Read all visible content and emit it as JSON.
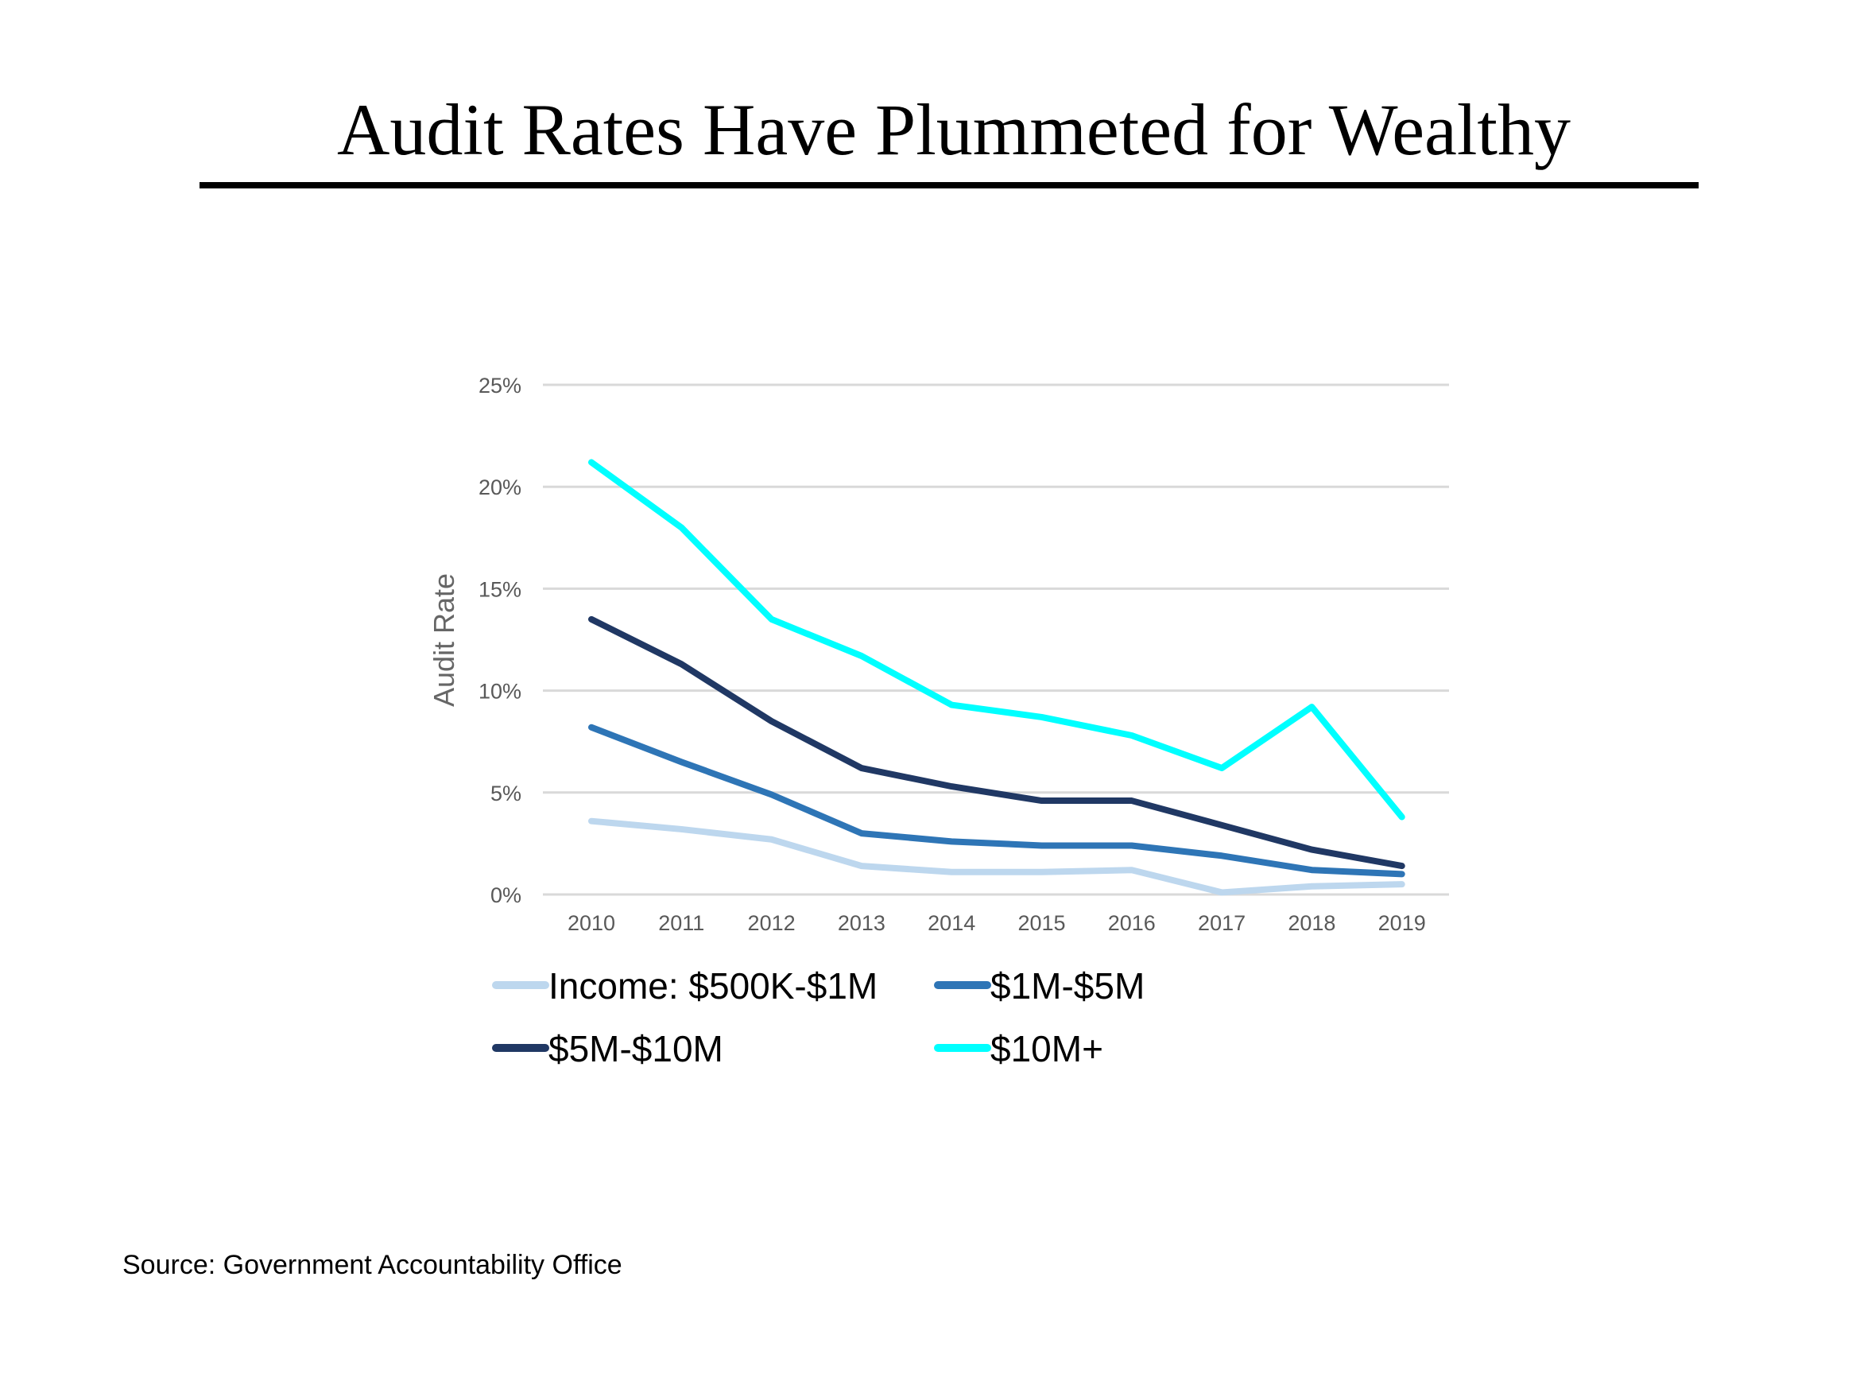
{
  "slide": {
    "title": "Audit Rates Have Plummeted for Wealthy",
    "source": "Source: Government Accountability Office"
  },
  "chart_data": {
    "type": "line",
    "title": "",
    "xlabel": "",
    "ylabel": "Audit Rate",
    "x": [
      "2010",
      "2011",
      "2012",
      "2013",
      "2014",
      "2015",
      "2016",
      "2017",
      "2018",
      "2019"
    ],
    "ylim": [
      0,
      25
    ],
    "yticks": [
      "0%",
      "5%",
      "10%",
      "15%",
      "20%",
      "25%"
    ],
    "ytick_values": [
      0,
      5,
      10,
      15,
      20,
      25
    ],
    "grid": true,
    "legend_position": "bottom",
    "series": [
      {
        "name": "Income: $500K-$1M",
        "color": "#bdd7ee",
        "values": [
          3.6,
          3.2,
          2.7,
          1.4,
          1.1,
          1.1,
          1.2,
          0.1,
          0.4,
          0.5
        ]
      },
      {
        "name": "$1M-$5M",
        "color": "#2e75b6",
        "values": [
          8.2,
          6.5,
          4.9,
          3.0,
          2.6,
          2.4,
          2.4,
          1.9,
          1.2,
          1.0
        ]
      },
      {
        "name": "$5M-$10M",
        "color": "#203864",
        "values": [
          13.5,
          11.3,
          8.5,
          6.2,
          5.3,
          4.6,
          4.6,
          3.4,
          2.2,
          1.4
        ]
      },
      {
        "name": "$10M+",
        "color": "#00ffff",
        "values": [
          21.2,
          18.0,
          13.5,
          11.7,
          9.3,
          8.7,
          7.8,
          6.2,
          9.2,
          3.8
        ]
      }
    ]
  }
}
